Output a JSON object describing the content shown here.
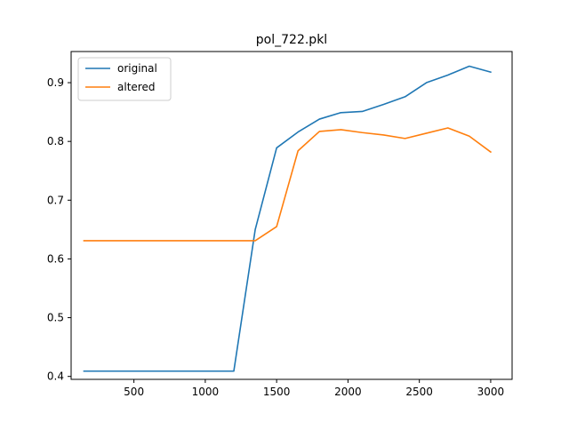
{
  "chart_data": {
    "type": "line",
    "title": "pol_722.pkl",
    "xlabel": "",
    "ylabel": "",
    "xlim": [
      60,
      3150
    ],
    "ylim": [
      0.395,
      0.953
    ],
    "x_ticks": [
      500,
      1000,
      1500,
      2000,
      2500,
      3000
    ],
    "y_ticks": [
      0.4,
      0.5,
      0.6,
      0.7,
      0.8,
      0.9
    ],
    "grid": false,
    "legend_position": "top-left",
    "series": [
      {
        "name": "original",
        "color": "#1f77b4",
        "x": [
          150,
          300,
          450,
          600,
          750,
          900,
          1050,
          1200,
          1350,
          1500,
          1650,
          1800,
          1950,
          2100,
          2250,
          2400,
          2550,
          2700,
          2850,
          3000
        ],
        "y": [
          0.409,
          0.409,
          0.409,
          0.409,
          0.409,
          0.409,
          0.409,
          0.409,
          0.65,
          0.789,
          0.816,
          0.838,
          0.849,
          0.851,
          0.863,
          0.876,
          0.9,
          0.913,
          0.928,
          0.918
        ]
      },
      {
        "name": "altered",
        "color": "#ff7f0e",
        "x": [
          150,
          300,
          450,
          600,
          750,
          900,
          1050,
          1200,
          1350,
          1500,
          1650,
          1800,
          1950,
          2100,
          2250,
          2400,
          2550,
          2700,
          2850,
          3000
        ],
        "y": [
          0.631,
          0.631,
          0.631,
          0.631,
          0.631,
          0.631,
          0.631,
          0.631,
          0.631,
          0.655,
          0.784,
          0.817,
          0.82,
          0.815,
          0.811,
          0.805,
          0.814,
          0.823,
          0.809,
          0.782
        ]
      }
    ]
  }
}
